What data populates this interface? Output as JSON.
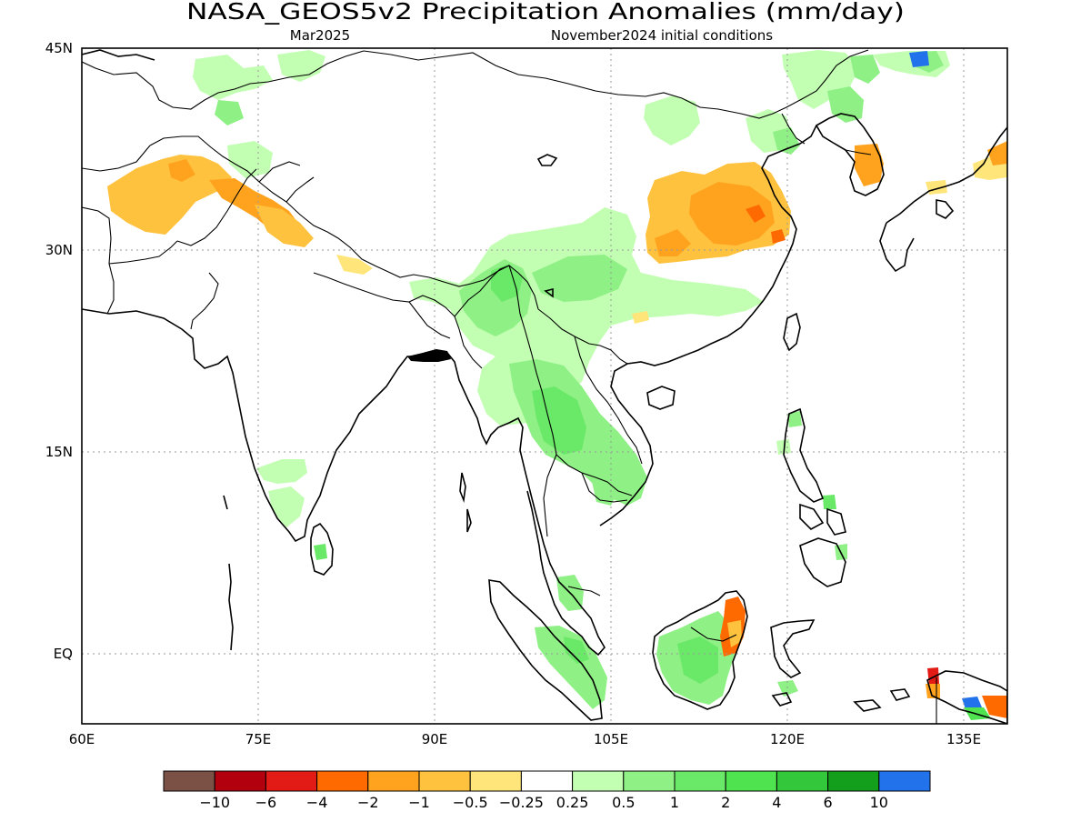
{
  "title": "NASA_GEOS5v2 Precipitation Anomalies (mm/day)",
  "subtitle_left": "Mar2025",
  "subtitle_right": "November2024 initial conditions",
  "map": {
    "lon_labels": [
      "60E",
      "75E",
      "90E",
      "105E",
      "120E",
      "135E"
    ],
    "lat_labels": [
      "45N",
      "30N",
      "15N",
      "EQ"
    ]
  },
  "colorbar": {
    "colors": [
      "#7b5146",
      "#b3000e",
      "#e21b16",
      "#ff6a00",
      "#ffa31e",
      "#ffc23f",
      "#ffe57a",
      "#ffffff",
      "#c2ffb2",
      "#8ff085",
      "#6ae868",
      "#4ee34f",
      "#33c83b",
      "#139e1b",
      "#2272ec"
    ],
    "labels": [
      "−10",
      "−6",
      "−4",
      "−2",
      "−1",
      "−0.5",
      "−0.25",
      "0.25",
      "0.5",
      "1",
      "2",
      "4",
      "6",
      "10"
    ]
  },
  "anomaly_colors": {
    "wet_light": "#c2ffb2",
    "wet_mid": "#8ff085",
    "wet": "#6ae868",
    "wet_strong": "#4ee34f",
    "dry_light": "#ffe57a",
    "dry": "#ffc23f",
    "dry_mid": "#ffa31e",
    "dry_strong": "#ff6a00",
    "dry_extreme": "#e21b16",
    "wet_extreme": "#2272ec"
  }
}
